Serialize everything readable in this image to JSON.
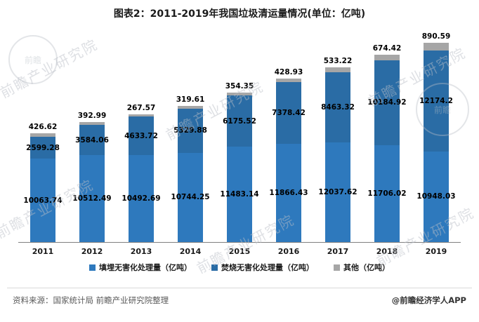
{
  "title": "图表2：2011-2019年我国垃圾清运量情况(单位：亿吨)",
  "chart_data": {
    "type": "bar",
    "stacked": true,
    "title": "图表2：2011-2019年我国垃圾清运量情况(单位：亿吨)",
    "categories": [
      "2011",
      "2012",
      "2013",
      "2014",
      "2015",
      "2016",
      "2017",
      "2018",
      "2019"
    ],
    "series": [
      {
        "name": "填埋无害化处理量（亿吨）",
        "color": "#2E79BD",
        "values": [
          10063.74,
          10512.49,
          10492.69,
          10744.25,
          11483.14,
          11866.43,
          12037.62,
          11706.02,
          10948.03
        ]
      },
      {
        "name": "焚烧无害化处理量（亿吨）",
        "color": "#2A6CA5",
        "values": [
          2599.28,
          3584.06,
          4633.72,
          5329.88,
          6175.52,
          7378.42,
          8463.32,
          10184.92,
          12174.2
        ]
      },
      {
        "name": "其他（亿吨）",
        "color": "#A6A6A6",
        "values": [
          426.62,
          392.99,
          267.57,
          319.61,
          354.35,
          428.93,
          533.22,
          674.42,
          890.59
        ]
      }
    ],
    "xlabel": "",
    "ylabel": "",
    "ylim": [
      0,
      24012.82
    ],
    "grid": false,
    "legend_position": "bottom",
    "value_labels": true
  },
  "watermark": {
    "text": "前瞻产业研究院",
    "seal_text": "前瞻"
  },
  "footer": {
    "source": "资料来源：国家统计局 前瞻产业研究院整理",
    "credit": "@前瞻经济学人APP"
  }
}
